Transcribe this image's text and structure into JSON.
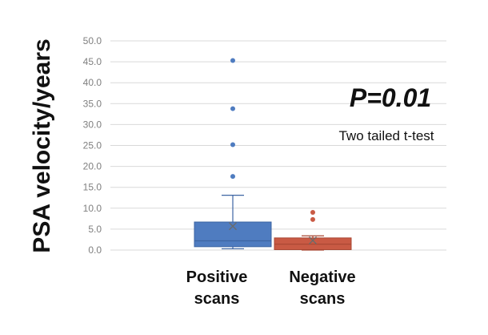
{
  "chart_data": {
    "type": "boxplot",
    "title": "",
    "xlabel": "",
    "ylabel": "PSA velocity/years",
    "ylim": [
      0,
      50
    ],
    "yticks": [
      "0.0",
      "5.0",
      "10.0",
      "15.0",
      "20.0",
      "25.0",
      "30.0",
      "35.0",
      "40.0",
      "45.0",
      "50.0"
    ],
    "grid": true,
    "categories": [
      "Positive scans",
      "Negative scans"
    ],
    "category_lines": [
      [
        "Positive",
        "scans"
      ],
      [
        "Negative",
        "scans"
      ]
    ],
    "boxes": [
      {
        "category": "Positive scans",
        "color": "#4f7cc0",
        "edge": "#3d65a3",
        "whisker_low": 0.3,
        "q1": 0.8,
        "median": 2.2,
        "mean": 5.7,
        "q3": 6.7,
        "whisker_high": 13.1,
        "outliers": [
          17.6,
          25.2,
          33.8,
          45.3
        ]
      },
      {
        "category": "Negative scans",
        "color": "#c95a44",
        "edge": "#a94733",
        "whisker_low": 0.0,
        "q1": 0.1,
        "median": 1.4,
        "mean": 2.3,
        "q3": 2.9,
        "whisker_high": 3.4,
        "outliers": [
          7.3,
          9.0
        ]
      }
    ],
    "annotations": [
      {
        "id": "p-value",
        "text": "P=0.01"
      },
      {
        "id": "test",
        "text": "Two tailed t-test"
      }
    ]
  }
}
